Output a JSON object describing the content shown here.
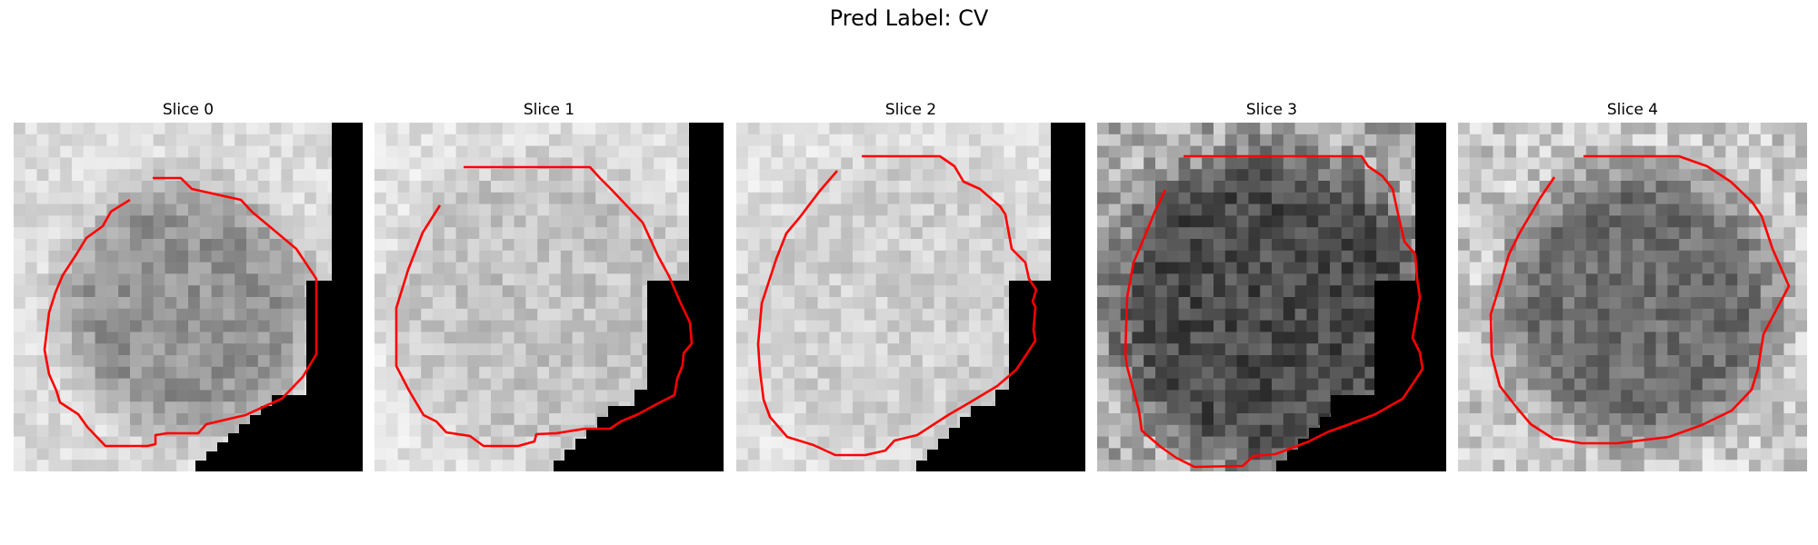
{
  "figure": {
    "title": "Pred Label: CV"
  },
  "panels": [
    {
      "title": "Slice 0"
    },
    {
      "title": "Slice 1"
    },
    {
      "title": "Slice 2"
    },
    {
      "title": "Slice 3"
    },
    {
      "title": "Slice 4"
    }
  ],
  "colors": {
    "contour": "#e41a1c",
    "mask": "#000000",
    "background": "#ffffff"
  },
  "image": {
    "colormap": "gray",
    "grid": "30x30 pixels per slice"
  }
}
